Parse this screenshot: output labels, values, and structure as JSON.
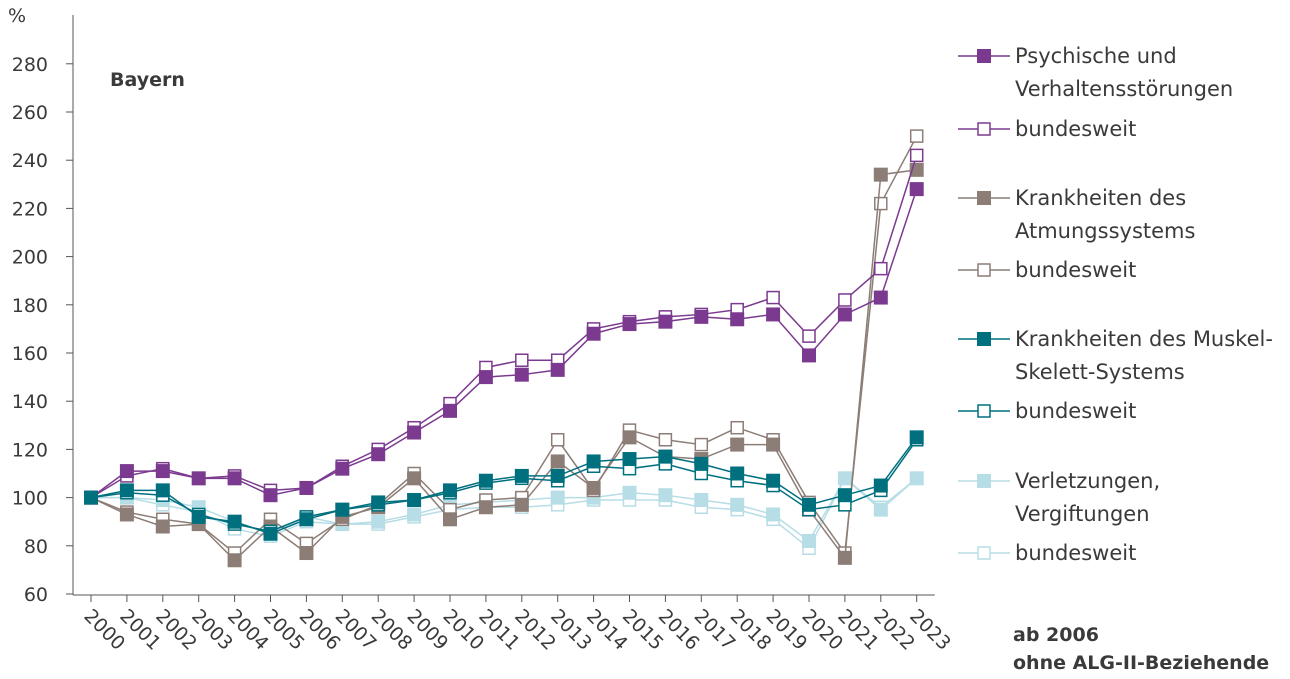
{
  "chart_data": {
    "type": "line",
    "ylabel": "%",
    "ylim": [
      60,
      290
    ],
    "yticks": [
      60,
      80,
      100,
      120,
      140,
      160,
      180,
      200,
      220,
      240,
      260,
      280
    ],
    "categories": [
      "2000",
      "2001",
      "2002",
      "2003",
      "2004",
      "2005",
      "2006",
      "2007",
      "2008",
      "2009",
      "2010",
      "2011",
      "2012",
      "2013",
      "2014",
      "2015",
      "2016",
      "2017",
      "2018",
      "2019",
      "2020",
      "2021",
      "2022",
      "2023"
    ],
    "region_label": "Bayern",
    "note": [
      "ab 2006",
      "ohne ALG-II-Beziehende"
    ],
    "legend_placement": "right",
    "series": [
      {
        "name": "Psychische und Verhaltensstörungen",
        "label_lines": [
          "Psychische und",
          "Verhaltensstörungen"
        ],
        "color": "#7b3a8f",
        "filled": true,
        "values": [
          100,
          111,
          111,
          108,
          108,
          101,
          104,
          112,
          118,
          127,
          136,
          150,
          151,
          153,
          168,
          172,
          173,
          175,
          174,
          176,
          159,
          176,
          183,
          228
        ]
      },
      {
        "name": "bundesweit",
        "label_lines": [
          "bundesweit"
        ],
        "color": "#7b3a8f",
        "filled": false,
        "values": [
          100,
          109,
          112,
          108,
          109,
          103,
          104,
          113,
          120,
          129,
          139,
          154,
          157,
          157,
          170,
          173,
          175,
          176,
          178,
          183,
          167,
          182,
          195,
          242
        ]
      },
      {
        "name": "Krankheiten des Atmungssystems",
        "label_lines": [
          "Krankheiten des",
          "Atmungssystems"
        ],
        "color": "#8c7d76",
        "filled": true,
        "values": [
          100,
          93,
          88,
          89,
          74,
          88,
          77,
          92,
          96,
          108,
          91,
          96,
          97,
          115,
          104,
          125,
          117,
          116,
          122,
          122,
          95,
          75,
          234,
          236
        ]
      },
      {
        "name": "bundesweit",
        "label_lines": [
          "bundesweit"
        ],
        "color": "#8c7d76",
        "filled": false,
        "values": [
          100,
          94,
          91,
          89,
          77,
          91,
          81,
          91,
          97,
          110,
          95,
          99,
          100,
          124,
          103,
          128,
          124,
          122,
          129,
          124,
          98,
          77,
          222,
          250
        ]
      },
      {
        "name": "Krankheiten des Muskel-Skelett-Systems",
        "label_lines": [
          "Krankheiten des Muskel-",
          "Skelett-Systems"
        ],
        "color": "#00707f",
        "filled": true,
        "values": [
          100,
          103,
          103,
          92,
          90,
          85,
          91,
          95,
          98,
          99,
          103,
          107,
          109,
          109,
          115,
          116,
          117,
          114,
          110,
          107,
          97,
          101,
          105,
          125
        ]
      },
      {
        "name": "bundesweit",
        "label_lines": [
          "bundesweit"
        ],
        "color": "#00707f",
        "filled": false,
        "values": [
          100,
          102,
          101,
          93,
          89,
          86,
          92,
          95,
          97,
          99,
          102,
          106,
          108,
          107,
          113,
          112,
          114,
          110,
          107,
          105,
          95,
          97,
          103,
          124
        ]
      },
      {
        "name": "Verletzungen, Vergiftungen",
        "label_lines": [
          "Verletzungen,",
          "Vergiftungen"
        ],
        "color": "#b7dde6",
        "filled": true,
        "values": [
          100,
          100,
          99,
          96,
          90,
          85,
          92,
          89,
          90,
          93,
          97,
          98,
          99,
          100,
          100,
          102,
          101,
          99,
          97,
          93,
          82,
          108,
          95,
          108
        ]
      },
      {
        "name": "bundesweit",
        "label_lines": [
          "bundesweit"
        ],
        "color": "#b7dde6",
        "filled": false,
        "values": [
          100,
          100,
          97,
          94,
          87,
          84,
          90,
          89,
          89,
          92,
          95,
          96,
          96,
          97,
          99,
          99,
          99,
          96,
          95,
          91,
          79,
          108,
          96,
          108
        ]
      }
    ]
  }
}
